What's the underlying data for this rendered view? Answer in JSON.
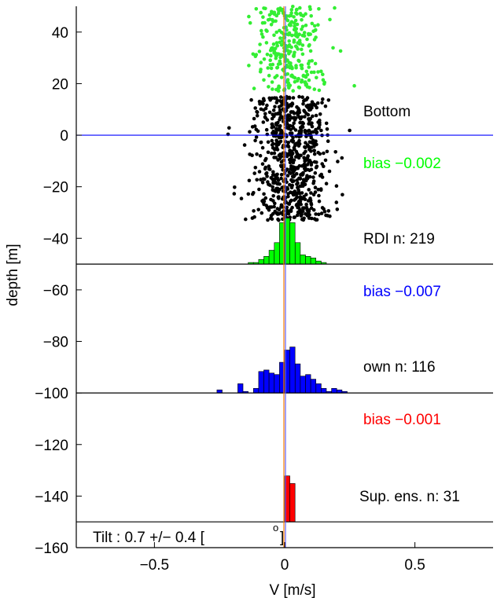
{
  "chart_data": {
    "type": "bar",
    "xlabel": "V [m/s]",
    "ylabel": "depth [m]",
    "xlim": [
      -0.8,
      0.8
    ],
    "ylim": [
      -160,
      50
    ],
    "x_ticks": [
      -0.5,
      0,
      0.5
    ],
    "x_tick_labels": [
      "−0.5",
      "0",
      "0.5"
    ],
    "y_ticks": [
      40,
      20,
      0,
      -20,
      -40,
      -60,
      -80,
      -100,
      -120,
      -140,
      -160
    ],
    "y_tick_labels": [
      "40",
      "20",
      "0",
      "−20",
      "−40",
      "−60",
      "−80",
      "−100",
      "−120",
      "−140",
      "−160"
    ],
    "grid": false,
    "colors": {
      "green": "#00ff00",
      "blue": "#0000ff",
      "red": "#ff0000",
      "black": "#000000",
      "scatter_green": "#33ee33",
      "bottom_line": "#0000ff",
      "vline_a": "#ff7f00",
      "vline_b": "#6060ff"
    },
    "bottom_line_depth": 0,
    "baselines": [
      -50,
      -100,
      -150
    ],
    "histograms": [
      {
        "name": "RDI",
        "color": "#00ff00",
        "baseline": -50,
        "bin_width": 0.02,
        "edges_start": -0.14,
        "counts": [
          1,
          1,
          3,
          5,
          9,
          14,
          27,
          30,
          27,
          14,
          6,
          5,
          4,
          2,
          1,
          0
        ],
        "bias_label": "bias −0.002",
        "n_label": "RDI n: 219"
      },
      {
        "name": "own",
        "color": "#0000ff",
        "baseline": -100,
        "bin_width": 0.02,
        "edges_start": -0.26,
        "counts": [
          2,
          0,
          0,
          0,
          6,
          1,
          0,
          3,
          14,
          15,
          13,
          12,
          20,
          28,
          30,
          19,
          11,
          12,
          9,
          6,
          3,
          1,
          3,
          2,
          1
        ],
        "bias_label": "bias −0.007",
        "n_label": "own n: 116"
      },
      {
        "name": "Sup. ens.",
        "color": "#ff0000",
        "baseline": -150,
        "bin_width": 0.02,
        "edges_start": 0.0,
        "counts": [
          30,
          25
        ],
        "bias_label": "bias −0.001",
        "n_label": "Sup. ens. n: 31"
      }
    ],
    "scatter": {
      "green_depth_range": [
        17,
        50
      ],
      "black_upper_depth_range": [
        -1,
        15
      ],
      "black_lower_depth_range": [
        -33,
        -2
      ]
    },
    "bottom_label": "Bottom",
    "tilt_label": "Tilt : 0.7 +/− 0.4 [",
    "tilt_unit_symbol": "o",
    "tilt_close": "]"
  }
}
